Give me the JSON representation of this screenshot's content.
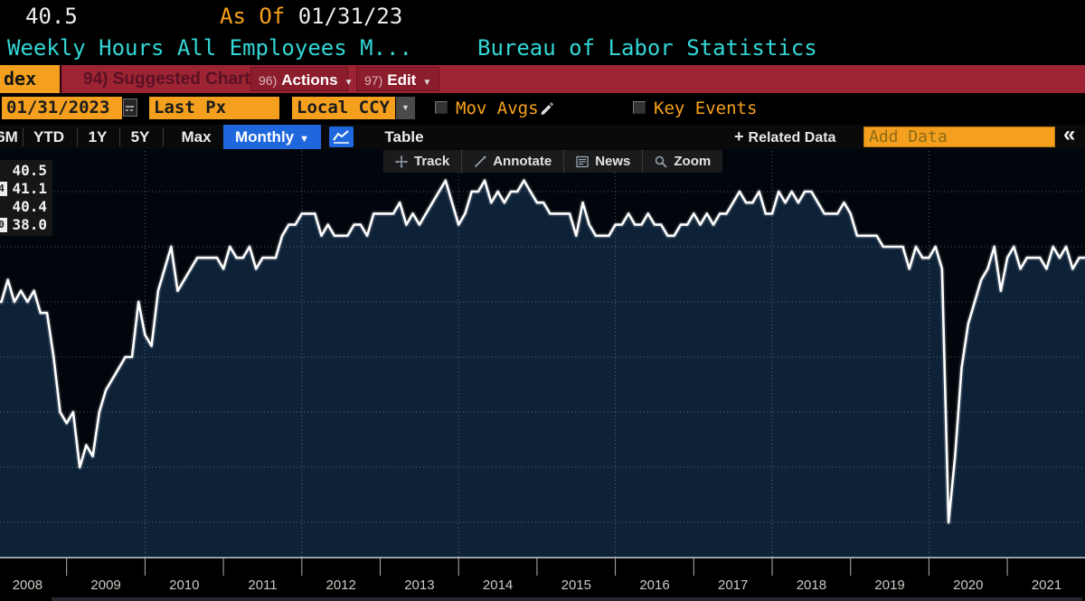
{
  "header": {
    "last_price": "40.5",
    "as_of_label": "As Of",
    "as_of_date": "01/31/23",
    "title": "Weekly Hours All Employees M...",
    "source": "Bureau of Labor Statistics"
  },
  "menubar": {
    "index_tab": "dex",
    "suggested_charts": "94) Suggested Charts",
    "actions_num": "96)",
    "actions_label": "Actions",
    "edit_num": "97)",
    "edit_label": "Edit",
    "caret": "▼"
  },
  "controls": {
    "date_value": "01/31/2023",
    "price_field": "Last Px",
    "currency": "Local CCY",
    "mov_avgs": "Mov Avgs",
    "key_events": "Key Events"
  },
  "rangebar": {
    "ranges": [
      "6M",
      "YTD",
      "1Y",
      "5Y",
      "Max"
    ],
    "period": "Monthly",
    "table_label": "Table",
    "plus": "+",
    "related_data": "Related Data",
    "add_data_placeholder": "Add Data",
    "collapse": "«"
  },
  "chart_toolbar": {
    "track": "Track",
    "annotate": "Annotate",
    "news": "News",
    "zoom": "Zoom"
  },
  "legend": {
    "last": "40.5",
    "high": "41.1",
    "avg": "40.4",
    "low": "38.0",
    "high_marker": "4",
    "low_marker": "0"
  },
  "colors": {
    "amber": "#f4a01e",
    "cyan": "#33d6d6",
    "bar_red": "#9d2433",
    "button_red": "#8b1d2c",
    "blue": "#1f67dd",
    "fill_navy": "#0d2137",
    "line": "#ffffff"
  },
  "chart_data": {
    "type": "area",
    "title": "Weekly Hours All Employees M...",
    "source": "Bureau of Labor Statistics",
    "frequency": "Monthly",
    "start": "2008-02",
    "end": "2022-01",
    "last_price": 40.5,
    "high": 41.1,
    "average": 40.4,
    "low": 38.0,
    "ylim": [
      37.7,
      41.4
    ],
    "grid": true,
    "gridline_values": [
      41.0,
      40.5,
      40.0,
      39.5,
      39.0,
      38.5,
      38.0
    ],
    "x_year_labels": [
      "2008",
      "2009",
      "2010",
      "2011",
      "2012",
      "2013",
      "2014",
      "2015",
      "2016",
      "2017",
      "2018",
      "2019",
      "2020",
      "2021"
    ],
    "x_gridline_years": [
      2010,
      2012,
      2014,
      2016,
      2018,
      2020
    ],
    "line_color": "#ffffff",
    "fill_color": "#0d2137",
    "values": [
      40.0,
      40.0,
      40.2,
      40.0,
      40.1,
      40.0,
      40.1,
      39.9,
      39.9,
      39.5,
      39.0,
      38.9,
      39.0,
      38.5,
      38.7,
      38.6,
      39.0,
      39.2,
      39.3,
      39.4,
      39.5,
      39.5,
      40.0,
      39.7,
      39.6,
      40.1,
      40.3,
      40.5,
      40.1,
      40.2,
      40.3,
      40.4,
      40.4,
      40.4,
      40.4,
      40.3,
      40.5,
      40.4,
      40.4,
      40.5,
      40.3,
      40.4,
      40.4,
      40.4,
      40.6,
      40.7,
      40.7,
      40.8,
      40.8,
      40.8,
      40.6,
      40.7,
      40.6,
      40.6,
      40.6,
      40.7,
      40.7,
      40.6,
      40.8,
      40.8,
      40.8,
      40.8,
      40.9,
      40.7,
      40.8,
      40.7,
      40.8,
      40.9,
      41.0,
      41.1,
      40.9,
      40.7,
      40.8,
      41.0,
      41.0,
      41.1,
      40.9,
      41.0,
      40.9,
      41.0,
      41.0,
      41.1,
      41.0,
      40.9,
      40.9,
      40.8,
      40.8,
      40.8,
      40.8,
      40.6,
      40.9,
      40.7,
      40.6,
      40.6,
      40.6,
      40.7,
      40.7,
      40.8,
      40.7,
      40.7,
      40.8,
      40.7,
      40.7,
      40.6,
      40.6,
      40.7,
      40.7,
      40.8,
      40.7,
      40.8,
      40.7,
      40.8,
      40.8,
      40.9,
      41.0,
      40.9,
      40.9,
      41.0,
      40.8,
      40.8,
      41.0,
      40.9,
      41.0,
      40.9,
      41.0,
      41.0,
      40.9,
      40.8,
      40.8,
      40.8,
      40.9,
      40.8,
      40.6,
      40.6,
      40.6,
      40.6,
      40.5,
      40.5,
      40.5,
      40.5,
      40.3,
      40.5,
      40.4,
      40.4,
      40.5,
      40.3,
      38.0,
      38.6,
      39.4,
      39.8,
      40.0,
      40.2,
      40.3,
      40.5,
      40.1,
      40.4,
      40.5,
      40.3,
      40.4,
      40.4,
      40.4,
      40.3,
      40.5,
      40.4,
      40.5,
      40.3,
      40.4,
      40.4
    ]
  }
}
